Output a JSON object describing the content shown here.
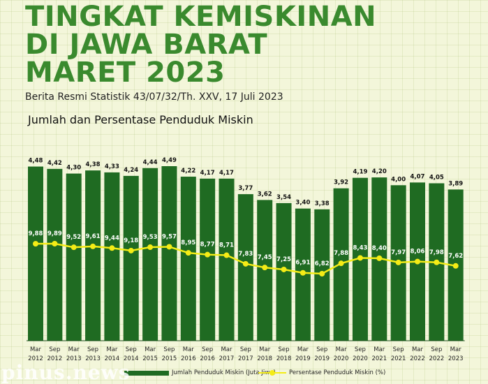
{
  "header": {
    "title_lines": [
      "TINGKAT KEMISKINAN",
      "DI JAWA BARAT",
      "MARET 2023"
    ],
    "source": "Berita Resmi Statistik 43/07/32/Th. XXV, 17 Juli 2023",
    "subtitle": "Jumlah dan Persentase Penduduk Miskin"
  },
  "colors": {
    "bar": "#1f6b22",
    "line": "#f4ec16",
    "title": "#3a8a2e",
    "background": "#f3f6da"
  },
  "chart_data": {
    "type": "bar",
    "title": "Jumlah dan Persentase Penduduk Miskin",
    "categories": [
      [
        "Mar",
        "2012"
      ],
      [
        "Sep",
        "2012"
      ],
      [
        "Mar",
        "2013"
      ],
      [
        "Sep",
        "2013"
      ],
      [
        "Mar",
        "2014"
      ],
      [
        "Sep",
        "2014"
      ],
      [
        "Mar",
        "2015"
      ],
      [
        "Sep",
        "2015"
      ],
      [
        "Mar",
        "2016"
      ],
      [
        "Sep",
        "2016"
      ],
      [
        "Mar",
        "2017"
      ],
      [
        "Sep",
        "2017"
      ],
      [
        "Mar",
        "2018"
      ],
      [
        "Sep",
        "2018"
      ],
      [
        "Mar",
        "2019"
      ],
      [
        "Sep",
        "2019"
      ],
      [
        "Mar",
        "2020"
      ],
      [
        "Sep",
        "2020"
      ],
      [
        "Mar",
        "2021"
      ],
      [
        "Sep",
        "2021"
      ],
      [
        "Mar",
        "2022"
      ],
      [
        "Sep",
        "2022"
      ],
      [
        "Mar",
        "2023"
      ]
    ],
    "series": [
      {
        "name": "Jumlah Penduduk Miskin (Juta Jiwa)",
        "type": "bar",
        "values": [
          4.48,
          4.42,
          4.3,
          4.38,
          4.33,
          4.24,
          4.44,
          4.49,
          4.22,
          4.17,
          4.17,
          3.77,
          3.62,
          3.54,
          3.4,
          3.38,
          3.92,
          4.19,
          4.2,
          4.0,
          4.07,
          4.05,
          3.89
        ],
        "labels": [
          "4,48",
          "4,42",
          "4,30",
          "4,38",
          "4,33",
          "4,24",
          "4,44",
          "4,49",
          "4,22",
          "4,17",
          "4,17",
          "3,77",
          "3,62",
          "3,54",
          "3,40",
          "3,38",
          "3,92",
          "4,19",
          "4,20",
          "4,00",
          "4,07",
          "4,05",
          "3,89"
        ]
      },
      {
        "name": "Persentase Penduduk Miskin (%)",
        "type": "line",
        "values": [
          9.88,
          9.89,
          9.52,
          9.61,
          9.44,
          9.18,
          9.53,
          9.57,
          8.95,
          8.77,
          8.71,
          7.83,
          7.45,
          7.25,
          6.91,
          6.82,
          7.88,
          8.43,
          8.4,
          7.97,
          8.06,
          7.98,
          7.62
        ],
        "labels": [
          "9,88",
          "9,89",
          "9,52",
          "9,61",
          "9,44",
          "9,18",
          "9,53",
          "9,57",
          "8,95",
          "8,77",
          "8,71",
          "7,83",
          "7,45",
          "7,25",
          "6,91",
          "6,82",
          "7,88",
          "8,43",
          "8,40",
          "7,97",
          "8,06",
          "7,98",
          "7,62"
        ]
      }
    ],
    "ylim_bars": [
      0,
      4.49
    ],
    "ylim_line": [
      6.82,
      9.89
    ],
    "legend": "bottom"
  },
  "legend": {
    "bar_label": "Jumlah Penduduk Miskin (Juta Jiwa)",
    "line_label": "Persentase Penduduk Miskin (%)"
  },
  "watermark": "pinus.news"
}
